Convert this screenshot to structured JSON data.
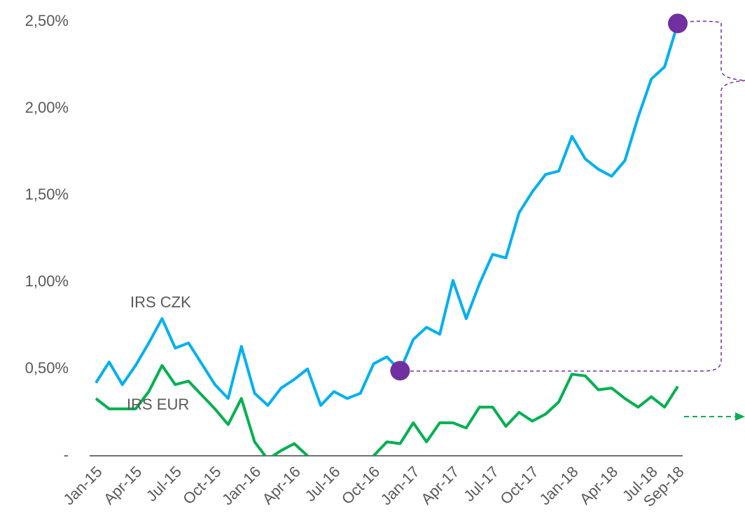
{
  "chart_data": {
    "type": "line",
    "categories": [
      "Jan-15",
      null,
      null,
      "Apr-15",
      null,
      null,
      "Jul-15",
      null,
      null,
      "Oct-15",
      null,
      null,
      "Jan-16",
      null,
      null,
      "Apr-16",
      null,
      null,
      "Jul-16",
      null,
      null,
      "Oct-16",
      null,
      null,
      "Jan-17",
      null,
      null,
      "Apr-17",
      null,
      null,
      "Jul-17",
      null,
      null,
      "Oct-17",
      null,
      null,
      "Jan-18",
      null,
      null,
      "Apr-18",
      null,
      null,
      "Jul-18",
      null,
      "Sep-18"
    ],
    "series": [
      {
        "name": "IRS CZK",
        "color": "#00b0f0",
        "values": [
          0.42,
          0.54,
          0.41,
          0.52,
          0.65,
          0.79,
          0.62,
          0.65,
          0.53,
          0.41,
          0.33,
          0.63,
          0.36,
          0.29,
          0.39,
          0.44,
          0.5,
          0.29,
          0.37,
          0.33,
          0.36,
          0.53,
          0.57,
          0.49,
          0.67,
          0.74,
          0.7,
          1.01,
          0.79,
          0.99,
          1.16,
          1.14,
          1.4,
          1.52,
          1.62,
          1.64,
          1.84,
          1.71,
          1.65,
          1.61,
          1.7,
          1.95,
          2.17,
          2.24,
          2.49
        ]
      },
      {
        "name": "IRS EUR",
        "color": "#00b050",
        "values": [
          0.33,
          0.27,
          0.27,
          0.27,
          0.37,
          0.52,
          0.41,
          0.43,
          0.35,
          0.27,
          0.18,
          0.33,
          0.08,
          -0.02,
          0.03,
          0.07,
          0.0,
          -0.05,
          -0.06,
          -0.06,
          -0.05,
          0.0,
          0.08,
          0.07,
          0.19,
          0.08,
          0.19,
          0.19,
          0.16,
          0.28,
          0.28,
          0.17,
          0.25,
          0.2,
          0.24,
          0.31,
          0.47,
          0.46,
          0.38,
          0.39,
          0.33,
          0.28,
          0.34,
          0.28,
          0.4
        ]
      }
    ],
    "ylim": [
      0,
      2.5
    ],
    "yticks": [
      {
        "value": 0,
        "label": "-"
      },
      {
        "value": 0.5,
        "label": "0,50%"
      },
      {
        "value": 1,
        "label": "1,00%"
      },
      {
        "value": 1.5,
        "label": "1,50%"
      },
      {
        "value": 2,
        "label": "2,00%"
      },
      {
        "value": 2.5,
        "label": "2,50%"
      }
    ],
    "markers": {
      "series": 0,
      "indices": [
        23,
        44
      ],
      "color": "#7030a0"
    }
  }
}
